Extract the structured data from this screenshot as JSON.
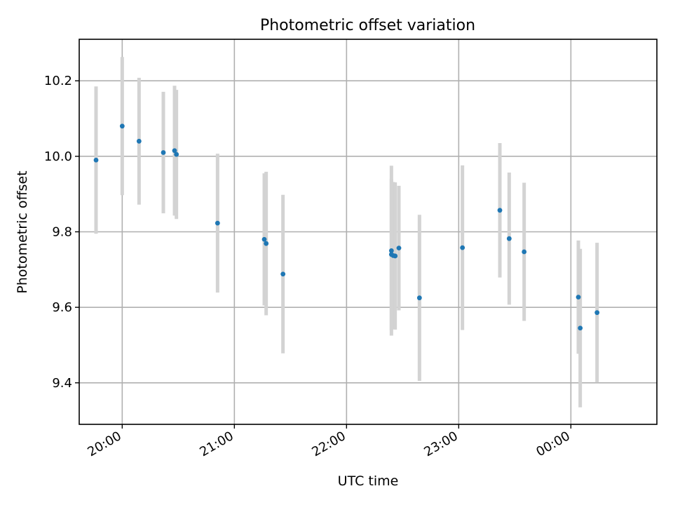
{
  "chart_data": {
    "type": "scatter",
    "title": "Photometric offset variation",
    "xlabel": "UTC time",
    "ylabel": "Photometric offset",
    "x_axis": "time",
    "xlim": [
      "19:37",
      "00:46"
    ],
    "ylim": [
      9.29,
      10.31
    ],
    "xticks": [
      "20:00",
      "21:00",
      "22:00",
      "23:00",
      "00:00"
    ],
    "yticks": [
      9.4,
      9.6,
      9.8,
      10.0,
      10.2
    ],
    "ytick_labels": [
      "9.4",
      "9.6",
      "9.8",
      "10.0",
      "10.2"
    ],
    "grid": true,
    "colors": {
      "marker": "#1f77b4",
      "errorbar": "#d3d3d3",
      "grid": "#b0b0b0"
    },
    "series": [
      {
        "points": [
          {
            "x": "19:46",
            "y": 9.99,
            "err": 0.195
          },
          {
            "x": "20:00",
            "y": 10.08,
            "err": 0.183
          },
          {
            "x": "20:09",
            "y": 10.04,
            "err": 0.168
          },
          {
            "x": "20:22",
            "y": 10.01,
            "err": 0.161
          },
          {
            "x": "20:28",
            "y": 10.015,
            "err": 0.172
          },
          {
            "x": "20:29",
            "y": 10.005,
            "err": 0.171
          },
          {
            "x": "20:51",
            "y": 9.823,
            "err": 0.184
          },
          {
            "x": "21:16",
            "y": 9.78,
            "err": 0.175
          },
          {
            "x": "21:17",
            "y": 9.769,
            "err": 0.19
          },
          {
            "x": "21:26",
            "y": 9.688,
            "err": 0.21
          },
          {
            "x": "22:24",
            "y": 9.75,
            "err": 0.225
          },
          {
            "x": "22:24",
            "y": 9.74,
            "err": 0.2
          },
          {
            "x": "22:25",
            "y": 9.737,
            "err": 0.195
          },
          {
            "x": "22:26",
            "y": 9.736,
            "err": 0.195
          },
          {
            "x": "22:28",
            "y": 9.757,
            "err": 0.165
          },
          {
            "x": "22:39",
            "y": 9.625,
            "err": 0.22
          },
          {
            "x": "23:02",
            "y": 9.758,
            "err": 0.218
          },
          {
            "x": "23:22",
            "y": 9.857,
            "err": 0.178
          },
          {
            "x": "23:27",
            "y": 9.782,
            "err": 0.175
          },
          {
            "x": "23:35",
            "y": 9.747,
            "err": 0.183
          },
          {
            "x": "00:04",
            "y": 9.627,
            "err": 0.15
          },
          {
            "x": "00:05",
            "y": 9.545,
            "err": 0.21
          },
          {
            "x": "00:14",
            "y": 9.586,
            "err": 0.185
          }
        ]
      }
    ]
  }
}
